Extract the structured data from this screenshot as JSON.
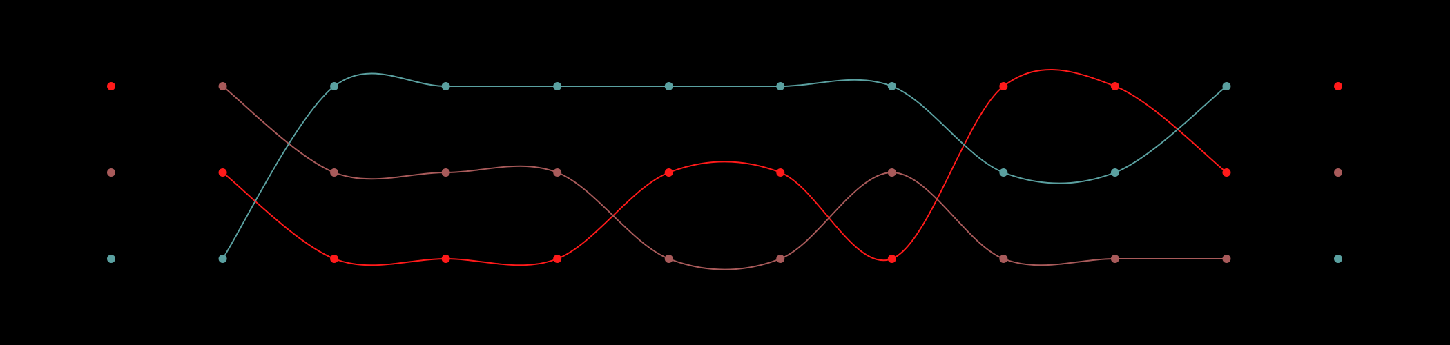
{
  "background": "#000000",
  "chart_data": {
    "type": "line",
    "subtype": "bump",
    "title": "",
    "xlabel": "",
    "ylabel": "",
    "grid": false,
    "legend": "none",
    "x": [
      1,
      2,
      3,
      4,
      5,
      6,
      7,
      8,
      9,
      10,
      11,
      12
    ],
    "ylim": [
      1,
      3
    ],
    "y_inverted": true,
    "series": [
      {
        "color": "#ff1a1a",
        "values": [
          1,
          2,
          3,
          3,
          3,
          2,
          2,
          3,
          1,
          1,
          2,
          1
        ]
      },
      {
        "color": "#a85a5a",
        "values": [
          2,
          1,
          2,
          2,
          2,
          3,
          3,
          2,
          3,
          3,
          3,
          2
        ]
      },
      {
        "color": "#5aa0a0",
        "values": [
          3,
          3,
          1,
          1,
          1,
          1,
          1,
          1,
          2,
          2,
          1,
          3
        ]
      }
    ]
  }
}
